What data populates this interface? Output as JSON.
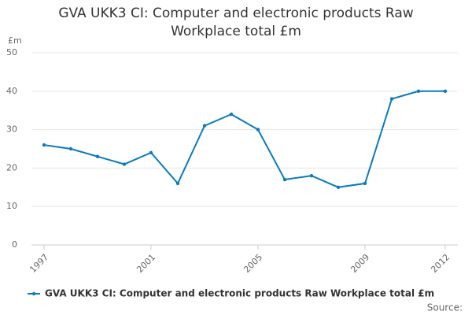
{
  "chart_data": {
    "type": "line",
    "title": "GVA UKK3 CI: Computer and electronic products Raw Workplace total £m",
    "y_label": "£m",
    "source": "Source:",
    "x": [
      1997,
      1998,
      1999,
      2000,
      2001,
      2002,
      2003,
      2004,
      2005,
      2006,
      2007,
      2008,
      2009,
      2010,
      2011,
      2012
    ],
    "series": [
      {
        "name": "GVA UKK3 CI: Computer and electronic products Raw Workplace total £m",
        "color": "#0c7bbd",
        "values": [
          26,
          25,
          23,
          21,
          24,
          16,
          31,
          34,
          30,
          17,
          18,
          15,
          16,
          38,
          40,
          40
        ]
      }
    ],
    "xlim": [
      1997,
      2012
    ],
    "xticks": [
      1997,
      2001,
      2005,
      2009,
      2012
    ],
    "ylim": [
      0,
      50
    ],
    "yticks": [
      0,
      10,
      20,
      30,
      40,
      50
    ],
    "grid": true
  }
}
